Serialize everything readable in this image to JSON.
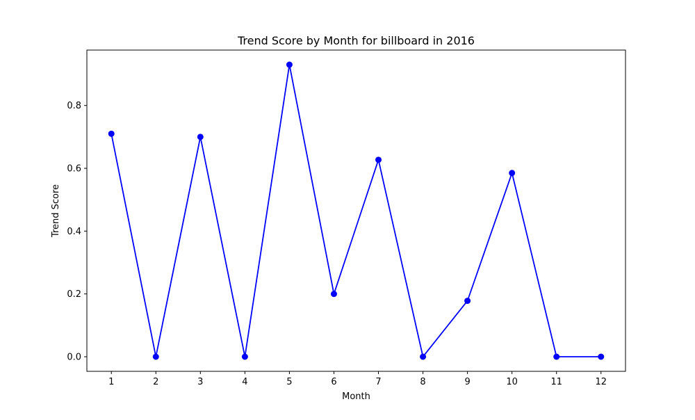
{
  "chart_data": {
    "type": "line",
    "title": "Trend Score by Month for billboard in 2016",
    "xlabel": "Month",
    "ylabel": "Trend Score",
    "x": [
      1,
      2,
      3,
      4,
      5,
      6,
      7,
      8,
      9,
      10,
      11,
      12
    ],
    "xticks": [
      "1",
      "2",
      "3",
      "4",
      "5",
      "6",
      "7",
      "8",
      "9",
      "10",
      "11",
      "12"
    ],
    "yticks": [
      "0.0",
      "0.2",
      "0.4",
      "0.6",
      "0.8"
    ],
    "ytick_values": [
      0.0,
      0.2,
      0.4,
      0.6,
      0.8
    ],
    "xlim": [
      0.45,
      12.55
    ],
    "ylim": [
      -0.0465,
      0.9765
    ],
    "series": [
      {
        "values": [
          0.71,
          0.0,
          0.7,
          0.0,
          0.93,
          0.2,
          0.627,
          0.0,
          0.178,
          0.585,
          0.0,
          0.0
        ],
        "color": "#0000ff",
        "marker": "circle"
      }
    ],
    "grid": false,
    "legend": false
  }
}
